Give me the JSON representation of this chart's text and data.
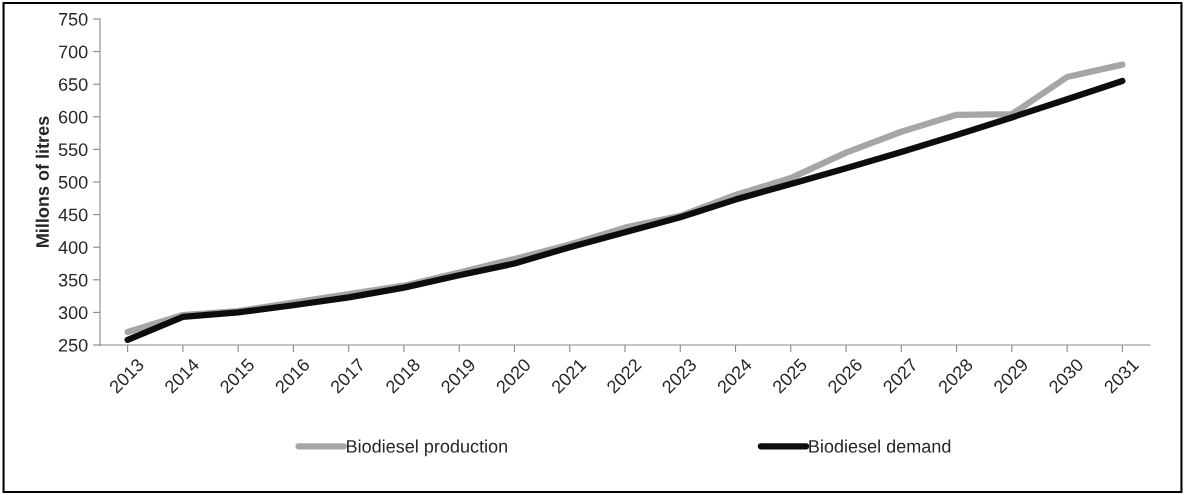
{
  "chart_data": {
    "type": "line",
    "ylabel": "Millons of litres",
    "categories": [
      "2013",
      "2014",
      "2015",
      "2016",
      "2017",
      "2018",
      "2019",
      "2020",
      "2021",
      "2022",
      "2023",
      "2024",
      "2025",
      "2026",
      "2027",
      "2028",
      "2029",
      "2030",
      "2031"
    ],
    "series": [
      {
        "name": "Biodiesel production",
        "color": "#a6a6a6",
        "values": [
          270,
          296,
          302,
          315,
          328,
          341,
          361,
          382,
          404,
          430,
          448,
          480,
          506,
          545,
          577,
          603,
          604,
          661,
          680
        ]
      },
      {
        "name": "Biodiesel demand",
        "color": "#0d0d0d",
        "values": [
          258,
          293,
          300,
          311,
          323,
          338,
          357,
          375,
          400,
          423,
          446,
          473,
          497,
          521,
          546,
          572,
          599,
          627,
          655
        ]
      }
    ],
    "ylim": [
      250,
      750
    ],
    "yticks": [
      250,
      300,
      350,
      400,
      450,
      500,
      550,
      600,
      650,
      700,
      750
    ],
    "grid": false,
    "legend": "bottom",
    "marker": "none",
    "line_style": "solid"
  }
}
